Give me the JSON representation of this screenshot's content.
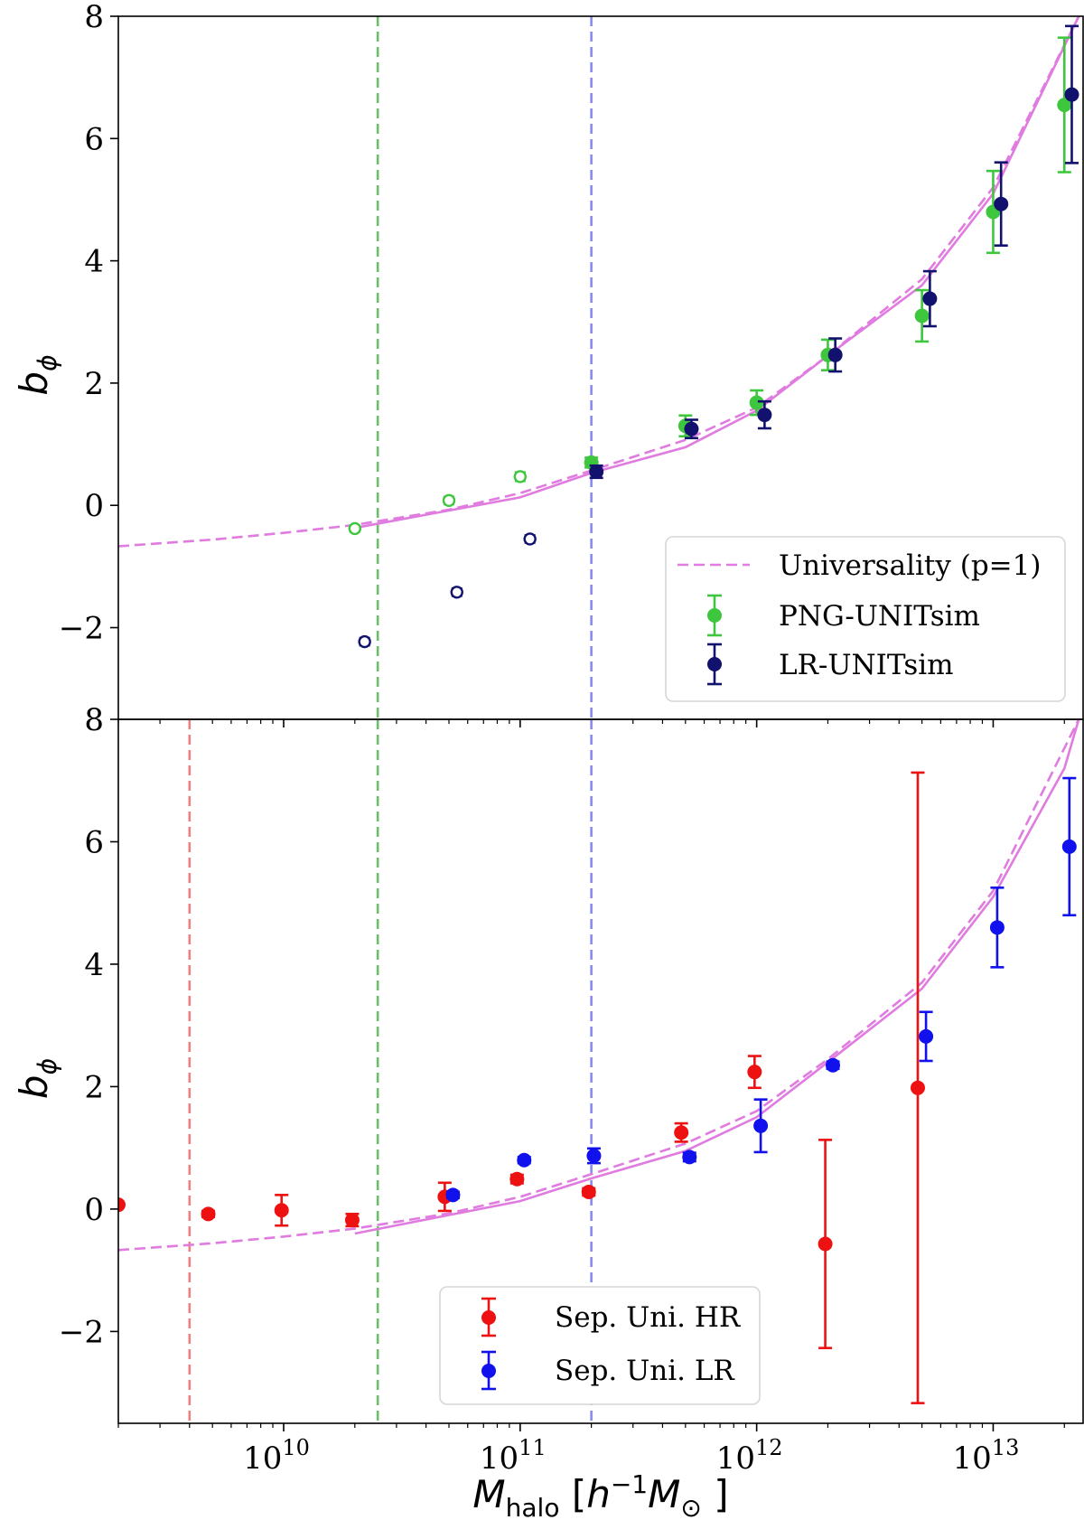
{
  "chart_data": [
    {
      "type": "scatter",
      "panel": "top",
      "xscale": "log",
      "xlim": [
        2000000000.0,
        24000000000000.0
      ],
      "ylim": [
        -3.5,
        8
      ],
      "ylabel": "b_φ",
      "yticks": [
        -2,
        0,
        2,
        4,
        6,
        8
      ],
      "yticklabels": [
        "−2",
        "0",
        "2",
        "4",
        "6",
        "8"
      ],
      "vlines": [
        {
          "x": 25000000000.0,
          "color": "#6cc06c"
        },
        {
          "x": 200000000000.0,
          "color": "#8a8aee"
        }
      ],
      "curves": [
        {
          "name": "Universality (p=1)",
          "style": "dashed",
          "color": "#e07be0",
          "x": [
            2000000000.0,
            5000000000.0,
            10000000000.0,
            20000000000.0,
            50000000000.0,
            100000000000.0,
            200000000000.0,
            500000000000.0,
            1000000000000.0,
            2000000000000.0,
            5000000000000.0,
            10000000000000.0,
            23000000000000.0
          ],
          "y": [
            -0.67,
            -0.56,
            -0.45,
            -0.32,
            -0.07,
            0.2,
            0.57,
            1.07,
            1.6,
            2.45,
            3.7,
            5.2,
            8.0
          ]
        },
        {
          "name": "",
          "style": "solid",
          "color": "#e07be0",
          "x": [
            20000000000.0,
            100000000000.0,
            200000000000.0,
            500000000000.0,
            1000000000000.0,
            2000000000000.0,
            5000000000000.0,
            10000000000000.0,
            23000000000000.0
          ],
          "y": [
            -0.37,
            0.13,
            0.53,
            0.95,
            1.55,
            2.45,
            3.6,
            5.1,
            8.0
          ]
        }
      ],
      "series": [
        {
          "name": "PNG-UNITsim",
          "color": "#3ec73e",
          "marker": "filled",
          "x": [
            200000000000.0,
            500000000000.0,
            1000000000000.0,
            2000000000000.0,
            5000000000000.0,
            10000000000000.0,
            20000000000000.0
          ],
          "y": [
            0.7,
            1.3,
            1.68,
            2.46,
            3.1,
            4.8,
            6.55
          ],
          "err": [
            0.08,
            0.17,
            0.2,
            0.25,
            0.42,
            0.67,
            1.1
          ]
        },
        {
          "name": "",
          "color": "#3ec73e",
          "marker": "open",
          "x": [
            20000000000.0,
            50000000000.0,
            100000000000.0
          ],
          "y": [
            -0.38,
            0.08,
            0.47
          ],
          "err": [
            0.05,
            0.06,
            0.07
          ]
        },
        {
          "name": "LR-UNITsim",
          "color": "#12126e",
          "marker": "filled",
          "x": [
            210000000000.0,
            530000000000.0,
            1080000000000.0,
            2150000000000.0,
            5400000000000.0,
            10800000000000.0,
            21500000000000.0
          ],
          "y": [
            0.55,
            1.25,
            1.48,
            2.46,
            3.38,
            4.93,
            6.72
          ],
          "err": [
            0.1,
            0.15,
            0.22,
            0.27,
            0.45,
            0.68,
            1.12
          ]
        },
        {
          "name": "",
          "color": "#12126e",
          "marker": "open",
          "x": [
            22000000000.0,
            54000000000.0,
            110000000000.0
          ],
          "y": [
            -2.23,
            -1.42,
            -0.55
          ],
          "err": [
            0.06,
            0.06,
            0.06
          ]
        }
      ],
      "legend": {
        "position": "lower-right",
        "entries": [
          "Universality (p=1)",
          "PNG-UNITsim",
          "LR-UNITsim"
        ]
      }
    },
    {
      "type": "scatter",
      "panel": "bottom",
      "xscale": "log",
      "xlim": [
        2000000000.0,
        24000000000000.0
      ],
      "ylim": [
        -3.5,
        8
      ],
      "xlabel": "M_halo [h^-1 M_⊙]",
      "ylabel": "b_φ",
      "xticks": [
        10000000000.0,
        100000000000.0,
        1000000000000.0,
        10000000000000.0
      ],
      "xticklabels": [
        {
          "base": "10",
          "exp": "10"
        },
        {
          "base": "10",
          "exp": "11"
        },
        {
          "base": "10",
          "exp": "12"
        },
        {
          "base": "10",
          "exp": "13"
        }
      ],
      "yticks": [
        -2,
        0,
        2,
        4,
        6,
        8
      ],
      "yticklabels": [
        "−2",
        "0",
        "2",
        "4",
        "6",
        "8"
      ],
      "vlines": [
        {
          "x": 4000000000.0,
          "color": "#f08080"
        },
        {
          "x": 25000000000.0,
          "color": "#6cc06c"
        },
        {
          "x": 200000000000.0,
          "color": "#8a8aee"
        }
      ],
      "curves": [
        {
          "name": "",
          "style": "dashed",
          "color": "#e07be0",
          "x": [
            2000000000.0,
            5000000000.0,
            10000000000.0,
            20000000000.0,
            50000000000.0,
            100000000000.0,
            200000000000.0,
            500000000000.0,
            1000000000000.0,
            2000000000000.0,
            5000000000000.0,
            10000000000000.0,
            23000000000000.0
          ],
          "y": [
            -0.67,
            -0.56,
            -0.45,
            -0.32,
            -0.07,
            0.2,
            0.57,
            1.07,
            1.6,
            2.45,
            3.7,
            5.2,
            8.0
          ]
        },
        {
          "name": "",
          "style": "solid",
          "color": "#e07be0",
          "x": [
            20000000000.0,
            100000000000.0,
            200000000000.0,
            500000000000.0,
            1000000000000.0,
            2000000000000.0,
            5000000000000.0,
            10000000000000.0,
            20000000000000.0,
            23000000000000.0
          ],
          "y": [
            -0.4,
            0.13,
            0.5,
            0.95,
            1.5,
            2.4,
            3.6,
            5.1,
            7.2,
            8.0
          ]
        }
      ],
      "series": [
        {
          "name": "Sep. Uni. HR",
          "color": "#ee1111",
          "marker": "filled",
          "x": [
            2000000000.0,
            4800000000.0,
            9800000000.0,
            19500000000.0,
            48000000000.0,
            97000000000.0,
            195000000000.0,
            480000000000.0,
            980000000000.0,
            1950000000000.0,
            4800000000000.0
          ],
          "y": [
            0.07,
            -0.08,
            -0.02,
            -0.18,
            0.2,
            0.49,
            0.28,
            1.25,
            2.24,
            -0.57,
            1.98
          ],
          "err": [
            0,
            0.05,
            0.25,
            0.1,
            0.23,
            0.07,
            0.06,
            0.15,
            0.26,
            1.7,
            5.15
          ]
        },
        {
          "name": "Sep. Uni. LR",
          "color": "#1111ee",
          "marker": "filled",
          "x": [
            52000000000.0,
            104000000000.0,
            205000000000.0,
            520000000000.0,
            1040000000000.0,
            2100000000000.0,
            5200000000000.0,
            10400000000000.0,
            21000000000000.0
          ],
          "y": [
            0.23,
            0.8,
            0.87,
            0.85,
            1.36,
            2.35,
            2.82,
            4.6,
            5.92
          ],
          "err": [
            0.05,
            0.05,
            0.12,
            0.07,
            0.43,
            0.06,
            0.4,
            0.65,
            1.12
          ]
        }
      ],
      "legend": {
        "position": "lower-center",
        "entries": [
          "Sep. Uni. HR",
          "Sep. Uni. LR"
        ]
      }
    }
  ]
}
